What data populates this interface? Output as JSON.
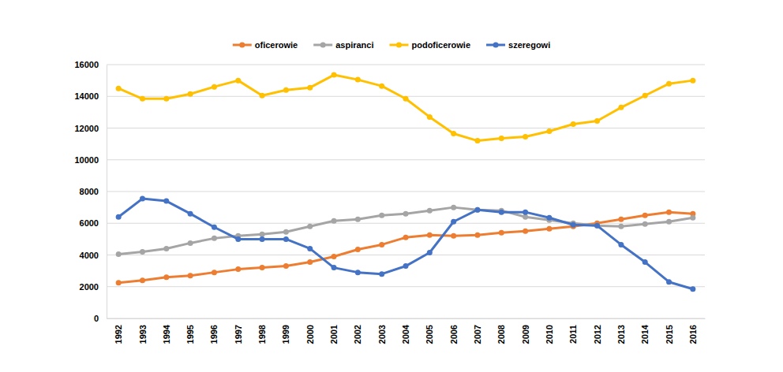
{
  "chart_data": {
    "type": "line",
    "categories": [
      "1992",
      "1993",
      "1994",
      "1995",
      "1996",
      "1997",
      "1998",
      "1999",
      "2000",
      "2001",
      "2002",
      "2003",
      "2004",
      "2005",
      "2006",
      "2007",
      "2008",
      "2009",
      "2010",
      "2011",
      "2012",
      "2013",
      "2014",
      "2015",
      "2016"
    ],
    "series": [
      {
        "name": "oficerowie",
        "color": "#ed7d31",
        "values": [
          2250,
          2400,
          2600,
          2700,
          2900,
          3100,
          3200,
          3300,
          3550,
          3900,
          4350,
          4650,
          5100,
          5250,
          5200,
          5250,
          5400,
          5500,
          5650,
          5800,
          6000,
          6250,
          6500,
          6700,
          6600
        ]
      },
      {
        "name": "aspiranci",
        "color": "#a5a5a5",
        "values": [
          4050,
          4200,
          4400,
          4750,
          5050,
          5200,
          5300,
          5450,
          5800,
          6150,
          6250,
          6500,
          6600,
          6800,
          7000,
          6850,
          6800,
          6400,
          6200,
          6000,
          5850,
          5800,
          5950,
          6100,
          6350
        ]
      },
      {
        "name": "podoficerowie",
        "color": "#ffc000",
        "values": [
          14500,
          13850,
          13850,
          14150,
          14600,
          15000,
          14050,
          14400,
          14550,
          15350,
          15050,
          14650,
          13850,
          12700,
          11650,
          11200,
          11350,
          11450,
          11800,
          12250,
          12450,
          13300,
          14050,
          14800,
          15000
        ]
      },
      {
        "name": "szeregowi",
        "color": "#4472c4",
        "values": [
          6400,
          7550,
          7400,
          6600,
          5750,
          5000,
          5000,
          5000,
          4400,
          3200,
          2900,
          2800,
          3300,
          4150,
          6100,
          6850,
          6700,
          6700,
          6350,
          5900,
          5850,
          4650,
          3550,
          2300,
          1850
        ]
      }
    ],
    "ylim": [
      0,
      16000
    ],
    "yticks": [
      0,
      2000,
      4000,
      6000,
      8000,
      10000,
      12000,
      14000,
      16000
    ],
    "grid": true,
    "legend": "top",
    "marker": "circle"
  }
}
